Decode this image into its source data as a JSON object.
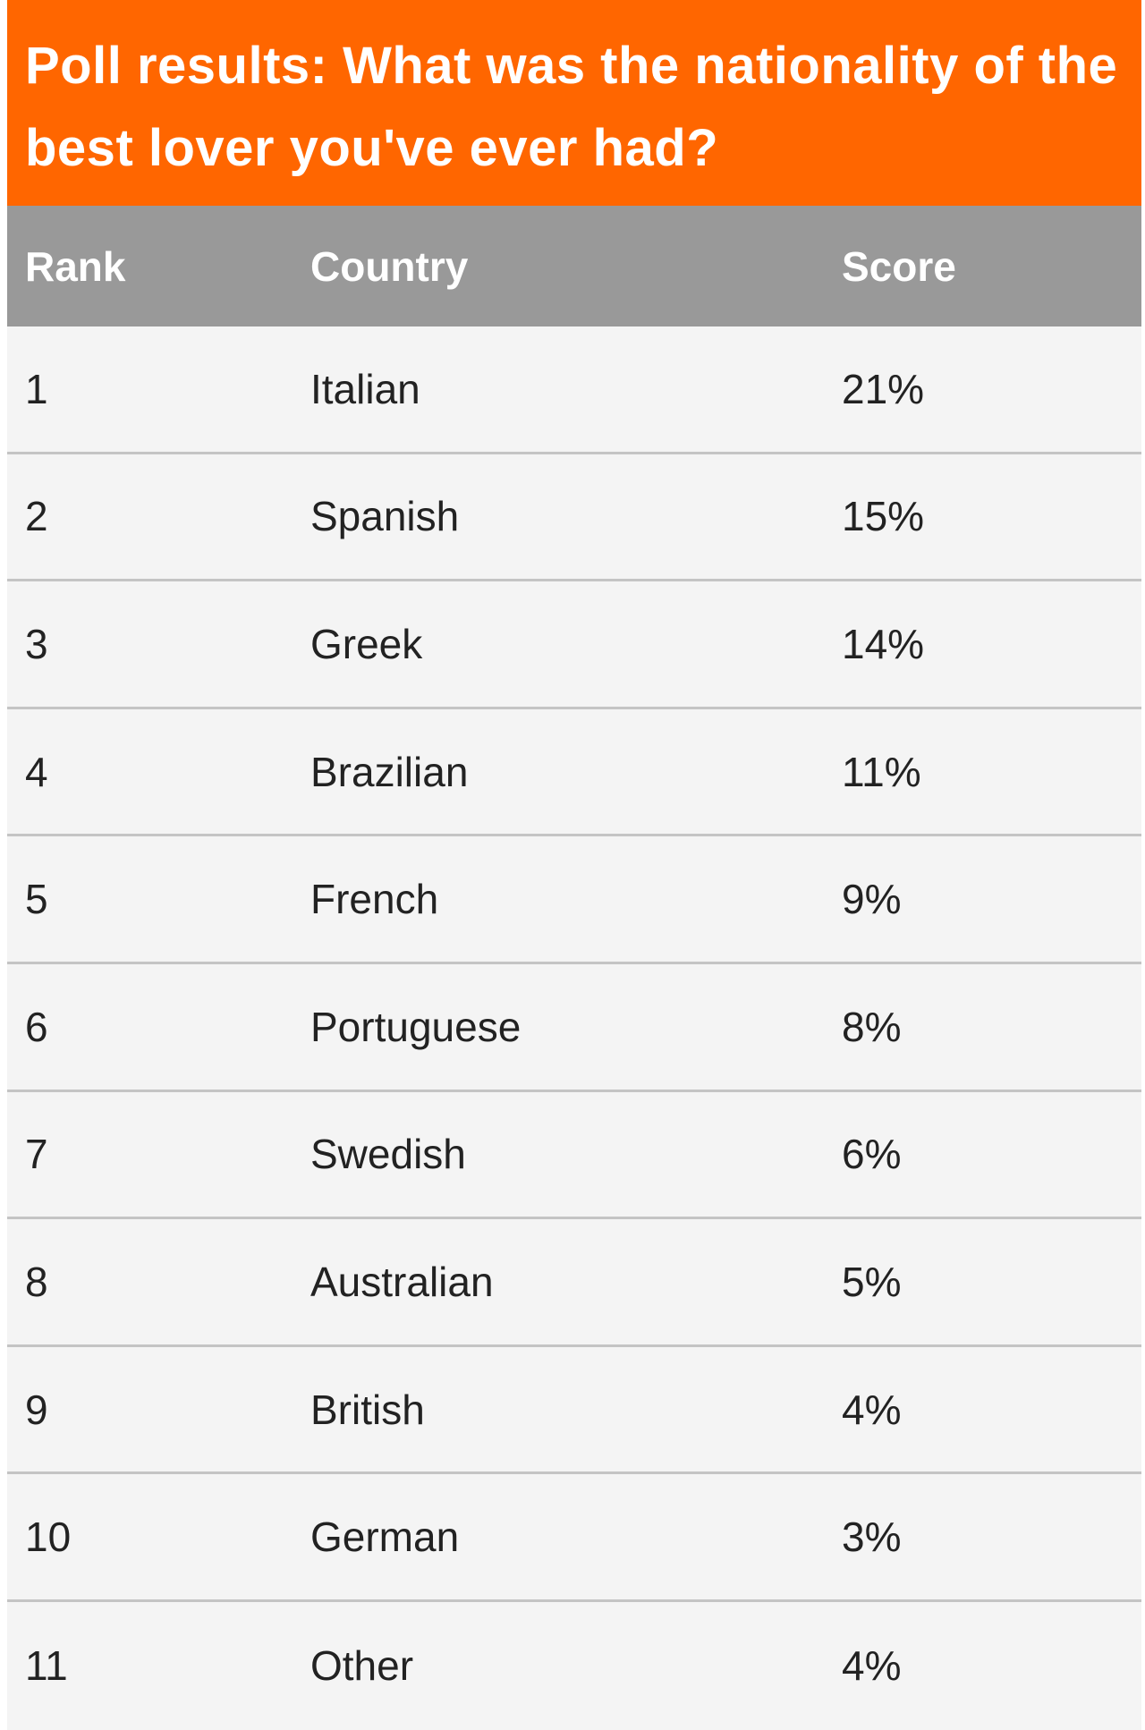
{
  "title": "Poll results: What was the nationality of the best lover you've ever had?",
  "colors": {
    "title_bg": "#ff6600",
    "header_bg": "#999999",
    "row_bg": "#f4f4f4"
  },
  "table": {
    "headers": [
      "Rank",
      "Country",
      "Score"
    ],
    "rows": [
      [
        "1",
        "Italian",
        "21%"
      ],
      [
        "2",
        "Spanish",
        "15%"
      ],
      [
        "3",
        "Greek",
        "14%"
      ],
      [
        "4",
        "Brazilian",
        "11%"
      ],
      [
        "5",
        "French",
        "9%"
      ],
      [
        "6",
        "Portuguese",
        "8%"
      ],
      [
        "7",
        "Swedish",
        "6%"
      ],
      [
        "8",
        "Australian",
        "5%"
      ],
      [
        "9",
        "British",
        "4%"
      ],
      [
        "10",
        "German",
        "3%"
      ],
      [
        "11",
        "Other",
        "4%"
      ]
    ]
  }
}
